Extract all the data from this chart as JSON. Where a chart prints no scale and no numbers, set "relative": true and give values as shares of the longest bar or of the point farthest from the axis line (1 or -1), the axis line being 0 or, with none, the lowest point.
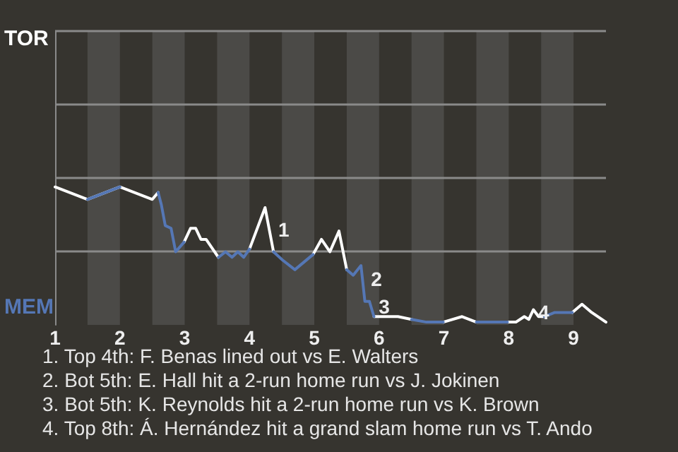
{
  "chart_data": {
    "type": "line",
    "relative": true,
    "x": [
      1.0,
      1.5,
      2.0,
      2.5,
      2.59,
      2.64,
      2.7,
      2.79,
      2.86,
      2.99,
      3.09,
      3.17,
      3.25,
      3.33,
      3.52,
      3.63,
      3.73,
      3.82,
      3.91,
      4.0,
      4.24,
      4.37,
      4.51,
      4.7,
      4.98,
      5.11,
      5.24,
      5.38,
      5.5,
      5.6,
      5.72,
      5.78,
      5.85,
      5.92,
      6.03,
      6.29,
      6.5,
      6.73,
      6.99,
      7.28,
      7.5,
      7.98,
      8.11,
      8.24,
      8.31,
      8.38,
      8.46,
      8.55,
      8.71,
      8.98,
      9.13,
      9.28,
      9.5
    ],
    "series": [
      {
        "name": "TOR",
        "color": "#ffffff",
        "values": [
          1,
          0.91,
          1,
          0.91,
          0.96,
          null,
          null,
          null,
          null,
          0.6,
          0.7,
          0.7,
          0.62,
          0.62,
          0.49,
          null,
          null,
          null,
          null,
          0.55,
          0.85,
          0.53,
          null,
          null,
          0.51,
          0.62,
          0.53,
          0.68,
          0.4,
          null,
          null,
          null,
          null,
          0.06,
          0.06,
          0.06,
          0.04,
          null,
          0.02,
          0.06,
          0.02,
          0.02,
          0.02,
          0.06,
          0.04,
          0.11,
          0.06,
          0.06,
          null,
          0.09,
          0.15,
          0.09,
          0.02
        ]
      },
      {
        "name": "MEM",
        "color": "#5577b5",
        "values": [
          null,
          0.91,
          1,
          null,
          0.96,
          0.87,
          0.72,
          0.7,
          0.53,
          0.6,
          null,
          null,
          null,
          null,
          0.49,
          0.53,
          0.49,
          0.53,
          0.49,
          0.55,
          null,
          0.53,
          0.47,
          0.4,
          0.51,
          null,
          null,
          null,
          0.4,
          0.36,
          0.43,
          0.17,
          0.17,
          0.06,
          null,
          null,
          0.04,
          0.02,
          0.02,
          null,
          0.02,
          0.02,
          null,
          null,
          null,
          null,
          null,
          0.06,
          0.09,
          0.09,
          null,
          null,
          null
        ]
      }
    ],
    "xlim": [
      1,
      9.5
    ],
    "xticks": [
      1,
      2,
      3,
      4,
      5,
      6,
      7,
      8,
      9
    ],
    "legend": "left",
    "ref_lines": [
      {
        "axis": "y",
        "value": 0.53,
        "color": "#8a8a8a",
        "line_style": "solid"
      }
    ],
    "marker": "none",
    "line_style": "solid",
    "bands": [
      {
        "axis": "x",
        "from": 1.5,
        "to": 2,
        "color": "#4b4a47"
      },
      {
        "axis": "x",
        "from": 2.5,
        "to": 3,
        "color": "#4b4a47"
      },
      {
        "axis": "x",
        "from": 3.5,
        "to": 4,
        "color": "#4b4a47"
      },
      {
        "axis": "x",
        "from": 4.5,
        "to": 5,
        "color": "#4b4a47"
      },
      {
        "axis": "x",
        "from": 5.5,
        "to": 6,
        "color": "#4b4a47"
      },
      {
        "axis": "x",
        "from": 6.5,
        "to": 7,
        "color": "#4b4a47"
      },
      {
        "axis": "x",
        "from": 7.5,
        "to": 8,
        "color": "#4b4a47"
      },
      {
        "axis": "x",
        "from": 8.5,
        "to": 9,
        "color": "#4b4a47"
      }
    ],
    "annotations": [
      {
        "text": "1",
        "x": 4.4,
        "y": 0.62
      },
      {
        "text": "2",
        "x": 5.83,
        "y": 0.26
      },
      {
        "text": "3",
        "x": 5.95,
        "y": 0.06
      },
      {
        "text": "4",
        "x": 8.41,
        "y": 0.02
      },
      "1. Top 4th: F. Benas lined out vs E. Walters",
      "2. Bot 5th: E. Hall hit a 2-run home run vs J. Jokinen",
      "3. Bot 5th: K. Reynolds hit a 2-run home run vs K. Brown",
      "4. Top 8th: Á. Hernández hit a grand slam home run vs T. Ando"
    ]
  }
}
